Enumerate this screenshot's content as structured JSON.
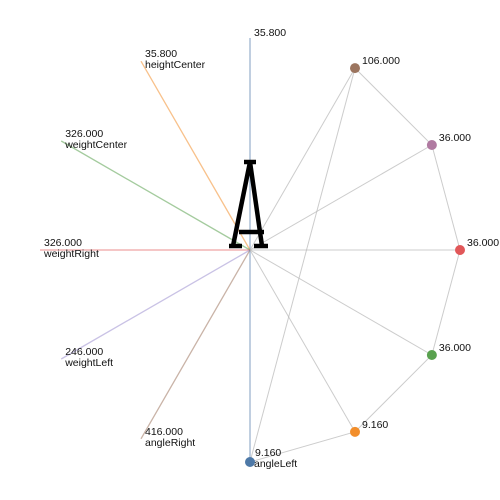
{
  "chart_data": {
    "type": "radial",
    "center_glyph": "A",
    "axes": [
      {
        "name": "",
        "value": "35.800",
        "color": "#4e79a7"
      },
      {
        "name": "heightCenter",
        "value": "35.800",
        "color": "#f28e2b"
      },
      {
        "name": "weightCenter",
        "value": "326.000",
        "color": "#59a14f"
      },
      {
        "name": "weightRight",
        "value": "326.000",
        "color": "#e15759"
      },
      {
        "name": "weightLeft",
        "value": "246.000",
        "color": "#9c8fd0"
      },
      {
        "name": "angleRight",
        "value": "416.000",
        "color": "#9c755f"
      },
      {
        "name": "angleLeft",
        "value": "9.160",
        "color": "#4e79a7"
      }
    ],
    "points": [
      {
        "value": "106.000",
        "color": "#9c755f"
      },
      {
        "value": "36.000",
        "color": "#b07aa1"
      },
      {
        "value": "36.000",
        "color": "#e15759"
      },
      {
        "value": "36.000",
        "color": "#59a14f"
      },
      {
        "value": "9.160",
        "color": "#f28e2b"
      }
    ]
  }
}
